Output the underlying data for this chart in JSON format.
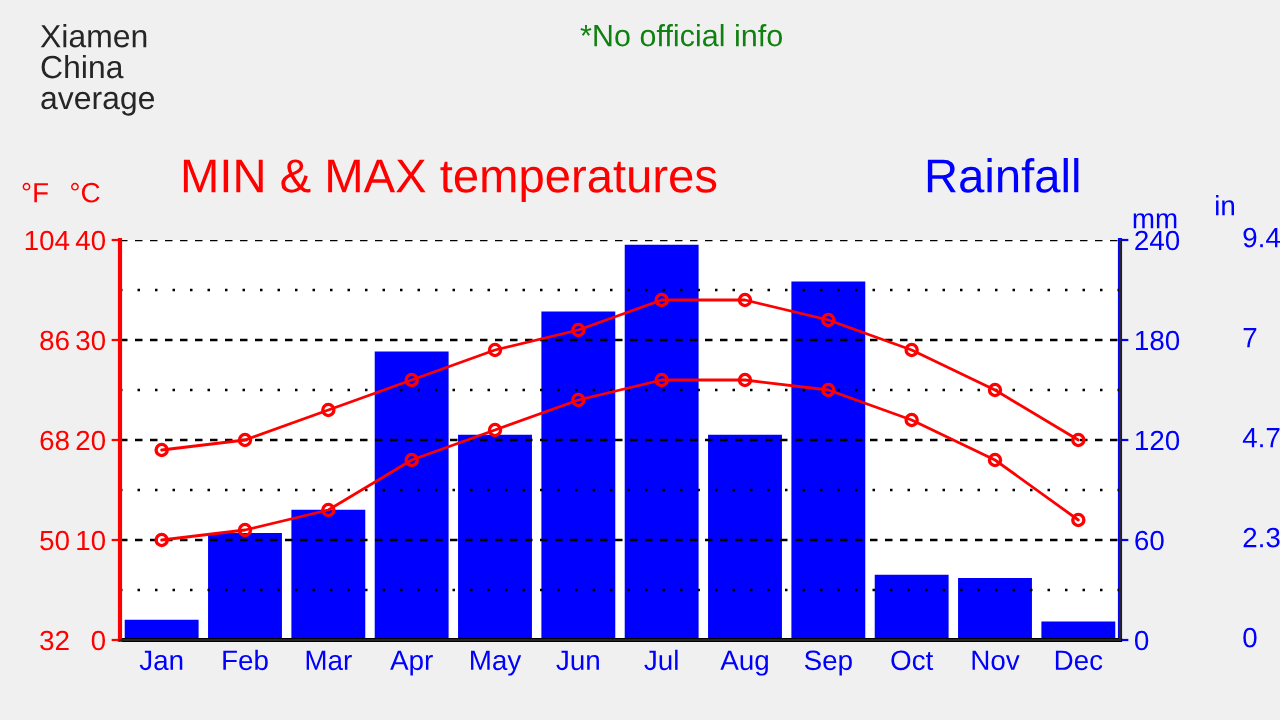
{
  "chart_data": {
    "type": "bar",
    "title": "MIN & MAX temperatures",
    "subtitle": "Rainfall",
    "annotations": [
      "Xiamen\nChina\naverage",
      "*No official info",
      "in",
      "0",
      "2.3",
      "4.7",
      "7",
      "9.4"
    ],
    "categories": [
      "Jan",
      "Feb",
      "Mar",
      "Apr",
      "May",
      "Jun",
      "Jul",
      "Aug",
      "Sep",
      "Oct",
      "Nov",
      "Dec"
    ],
    "series": [
      {
        "axis": "y2",
        "color": "#0000ff",
        "values": [
          13,
          65,
          79,
          174,
          124,
          198,
          238,
          124,
          216,
          40,
          38,
          12
        ]
      },
      {
        "type": "line",
        "axis": "y",
        "color": "#ff0000",
        "marker": "circle",
        "values": [
          19,
          20,
          23,
          26,
          29,
          31,
          34,
          34,
          32,
          29,
          25,
          20
        ]
      },
      {
        "type": "line",
        "axis": "y",
        "color": "#ff0000",
        "marker": "circle",
        "values": [
          10,
          11,
          13,
          18,
          21,
          24,
          26,
          26,
          25,
          22,
          18,
          12
        ]
      }
    ],
    "ylabel": "°C",
    "ylim": [
      0,
      40
    ],
    "yticks": [
      0,
      10,
      20,
      30,
      40
    ],
    "y3label": "°F",
    "y3lim": [
      32,
      104
    ],
    "y3ticks": [
      32,
      50,
      68,
      86,
      104
    ],
    "y2label": "mm",
    "y2lim": [
      0,
      240
    ],
    "y2ticks": [
      0,
      60,
      120,
      180,
      240
    ],
    "grid": "y",
    "legend": false
  }
}
